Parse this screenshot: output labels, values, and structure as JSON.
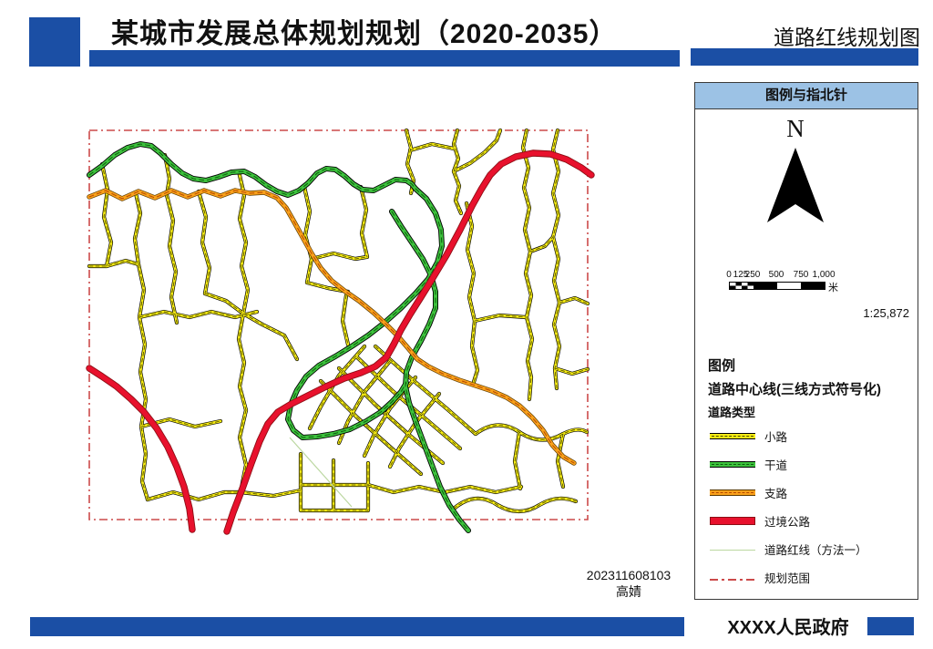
{
  "header": {
    "title": "某城市发展总体规划规划（2020-2035）",
    "map_title": "道路红线规划图"
  },
  "legend_panel": {
    "header": "图例与指北针",
    "north_label": "N",
    "scale_bar": {
      "ticks": [
        "0",
        "125",
        "250",
        "500",
        "750",
        "1,000"
      ],
      "unit": "米",
      "ratio": "1:25,872"
    },
    "legend_heading": "图例",
    "layer_name": "道路中心线(三线方式符号化)",
    "field_name": "道路类型",
    "items": [
      {
        "label": "小路",
        "color": "#F7EC13"
      },
      {
        "label": "干道",
        "color": "#3DC23D"
      },
      {
        "label": "支路",
        "color": "#F9A11B"
      },
      {
        "label": "过境公路",
        "color": "#E8112D"
      },
      {
        "label": "道路红线（方法一）",
        "color": "#BBD7A0"
      },
      {
        "label": "规划范围",
        "color": "#CC4A4A"
      }
    ]
  },
  "map_frame": {
    "credit_line1": "202311608103",
    "credit_line2": "高婧"
  },
  "footer": {
    "org": "XXXX人民政府"
  },
  "colors": {
    "brand_blue": "#1B4FA5",
    "legend_header_bg": "#9CC2E5",
    "minor_road": "#F7EC13",
    "arterial_road": "#3DC23D",
    "branch_road": "#F9A11B",
    "highway": "#E8112D",
    "road_redline": "#BBD7A0",
    "planning_boundary": "#CC4A4A"
  }
}
